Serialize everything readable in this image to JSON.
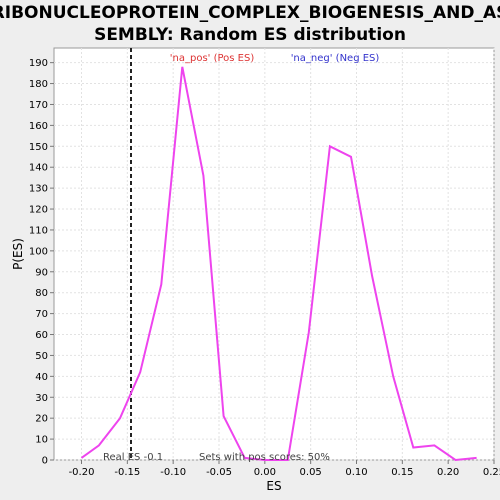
{
  "chart_data": {
    "type": "line",
    "title_line1": "RIBONUCLEOPROTEIN_COMPLEX_BIOGENESIS_AND_AS",
    "title_line2": "SEMBLY: Random ES distribution",
    "xlabel": "ES",
    "ylabel": "P(ES)",
    "xlim": [
      -0.23,
      0.25
    ],
    "ylim": [
      0,
      197
    ],
    "xticks": [
      -0.2,
      -0.15,
      -0.1,
      -0.05,
      0.0,
      0.05,
      0.1,
      0.15,
      0.2,
      0.25
    ],
    "xtick_labels": [
      "-0.20",
      "-0.15",
      "-0.10",
      "-0.05",
      "0.00",
      "0.05",
      "0.10",
      "0.15",
      "0.20",
      "0.25"
    ],
    "yticks": [
      0,
      10,
      20,
      30,
      40,
      50,
      60,
      70,
      80,
      90,
      100,
      110,
      120,
      130,
      140,
      150,
      160,
      170,
      180,
      190
    ],
    "grid": true,
    "line_color": "#ee44ee",
    "series": [
      {
        "x": [
          -0.2,
          -0.181,
          -0.158,
          -0.136,
          -0.113,
          -0.09,
          -0.067,
          -0.045,
          -0.022,
          0.0,
          0.025,
          0.048,
          0.071,
          0.094,
          0.117,
          0.14,
          0.162,
          0.185,
          0.208,
          0.231
        ],
        "y": [
          1,
          7,
          20,
          42,
          84,
          188,
          136,
          21,
          1,
          0,
          0,
          61,
          150,
          145,
          88,
          40,
          6,
          7,
          0,
          1
        ]
      }
    ],
    "real_es": -0.146,
    "real_es_label": "Real ES -0.1",
    "pos_label": "'na_pos' (Pos ES)",
    "neg_label": "'na_neg' (Neg ES)",
    "pos_color": "#dd3333",
    "neg_color": "#3333cc",
    "sets_label": "Sets with pos scores: 50%"
  }
}
